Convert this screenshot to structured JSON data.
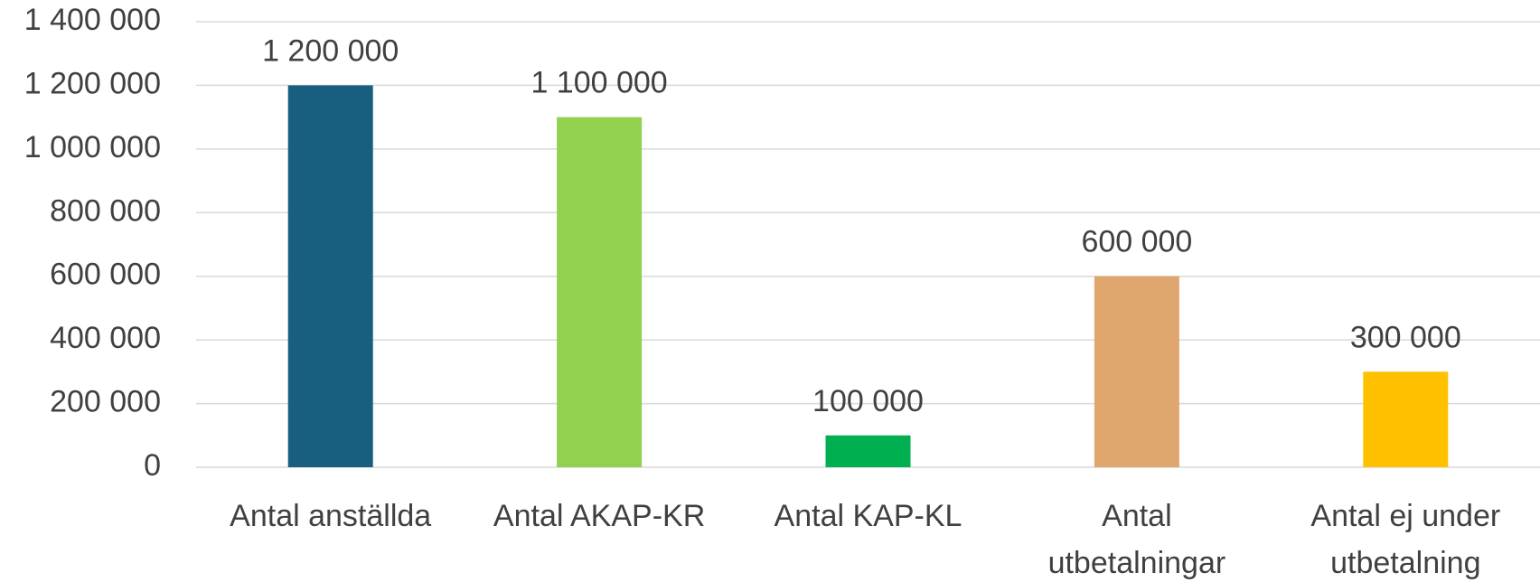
{
  "chart_data": {
    "type": "bar",
    "categories": [
      "Antal anställda",
      "Antal AKAP-KR",
      "Antal KAP-KL",
      "Antal utbetalningar",
      "Antal ej under utbetalning"
    ],
    "values": [
      1200000,
      1100000,
      100000,
      600000,
      300000
    ],
    "value_labels": [
      "1 200 000",
      "1 100 000",
      "100 000",
      "600 000",
      "300 000"
    ],
    "colors": [
      "#175e7f",
      "#92d050",
      "#00b050",
      "#dfa76e",
      "#ffc000"
    ],
    "ylim": [
      0,
      1400000
    ],
    "yticks": [
      0,
      {
        "value": 200000,
        "label": "200 000"
      },
      {
        "value": 400000,
        "label": "400 000"
      },
      {
        "value": 600000,
        "label": "600 000"
      },
      {
        "value": 800000,
        "label": "800 000"
      },
      {
        "value": 1000000,
        "label": "1 000 000"
      },
      {
        "value": 1200000,
        "label": "1 200 000"
      },
      {
        "value": 1400000,
        "label": "1 400 000"
      }
    ],
    "grid": true
  }
}
